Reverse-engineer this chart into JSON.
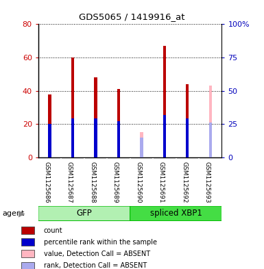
{
  "title": "GDS5065 / 1419916_at",
  "samples": [
    "GSM1125686",
    "GSM1125687",
    "GSM1125688",
    "GSM1125689",
    "GSM1125690",
    "GSM1125691",
    "GSM1125692",
    "GSM1125693"
  ],
  "count_values": [
    38,
    60,
    48,
    41,
    null,
    67,
    44,
    null
  ],
  "rank_values": [
    25,
    29,
    29,
    27,
    null,
    32,
    29,
    null
  ],
  "absent_value": [
    null,
    null,
    null,
    null,
    15,
    null,
    null,
    43
  ],
  "absent_rank": [
    null,
    null,
    null,
    null,
    15,
    null,
    null,
    26
  ],
  "groups": [
    {
      "label": "GFP",
      "start": 0,
      "end": 4,
      "color": "#b2f0b2",
      "edge_color": "#00bb00"
    },
    {
      "label": "spliced XBP1",
      "start": 4,
      "end": 8,
      "color": "#44dd44",
      "edge_color": "#00bb00"
    }
  ],
  "ylim_left": [
    0,
    80
  ],
  "ylim_right": [
    0,
    100
  ],
  "yticks_left": [
    0,
    20,
    40,
    60,
    80
  ],
  "yticks_right": [
    0,
    25,
    50,
    75,
    100
  ],
  "yticklabels_left": [
    "0",
    "20",
    "40",
    "60",
    "80"
  ],
  "yticklabels_right": [
    "0",
    "25",
    "50",
    "75",
    "100%"
  ],
  "bar_color_count": "#bb0000",
  "bar_color_rank": "#0000cc",
  "bar_color_absent_value": "#ffb6c1",
  "bar_color_absent_rank": "#aaaaee",
  "bar_width": 0.13,
  "rank_bar_width": 0.13,
  "legend_items": [
    {
      "color": "#bb0000",
      "label": "count"
    },
    {
      "color": "#0000cc",
      "label": "percentile rank within the sample"
    },
    {
      "color": "#ffb6c1",
      "label": "value, Detection Call = ABSENT"
    },
    {
      "color": "#aaaaee",
      "label": "rank, Detection Call = ABSENT"
    }
  ],
  "axis_label_color_left": "#cc0000",
  "axis_label_color_right": "#0000bb",
  "tick_area_color": "#cccccc",
  "agent_label": "agent"
}
